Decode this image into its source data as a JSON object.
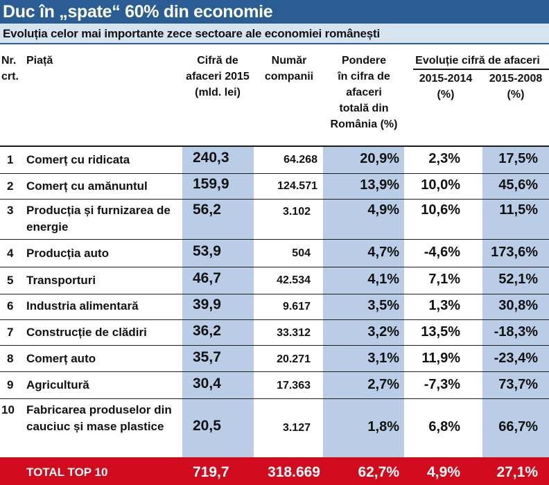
{
  "title": "Duc în „spate“ 60% din economie",
  "subtitle": "Evoluția celor mai importante zece sectoare ale economiei românești",
  "headers": {
    "nr": [
      "Nr.",
      "crt."
    ],
    "piata": "Piață",
    "cifra": [
      "Cifră de",
      "afaceri 2015",
      "(mld. lei)"
    ],
    "numar": [
      "Număr",
      "companii"
    ],
    "pondere": [
      "Pondere",
      "în cifra de",
      "afaceri",
      "totală din",
      "România (%)"
    ],
    "evolutie": "Evoluție cifră de afaceri",
    "ev1": [
      "2015-2014",
      "(%)"
    ],
    "ev2": [
      "2015-2008",
      "(%)"
    ]
  },
  "rows": [
    {
      "nr": "1",
      "name": "Comerț cu ridicata",
      "cifra": "240,3",
      "numar": "64.268",
      "pondere": "20,9%",
      "ev1": "2,3%",
      "ev2": "17,5%"
    },
    {
      "nr": "2",
      "name": "Comerț cu amănuntul",
      "cifra": "159,9",
      "numar": "124.571",
      "pondere": "13,9%",
      "ev1": "10,0%",
      "ev2": "45,6%"
    },
    {
      "nr": "3",
      "name": "Producția și furnizarea de energie",
      "cifra": "56,2",
      "numar": "3.102",
      "pondere": "4,9%",
      "ev1": "10,6%",
      "ev2": "11,5%"
    },
    {
      "nr": "4",
      "name": "Producția auto",
      "cifra": "53,9",
      "numar": "504",
      "pondere": "4,7%",
      "ev1": "-4,6%",
      "ev2": "173,6%"
    },
    {
      "nr": "5",
      "name": "Transporturi",
      "cifra": "46,7",
      "numar": "42.534",
      "pondere": "4,1%",
      "ev1": "7,1%",
      "ev2": "52,1%"
    },
    {
      "nr": "6",
      "name": "Industria alimentară",
      "cifra": "39,9",
      "numar": "9.617",
      "pondere": "3,5%",
      "ev1": "1,3%",
      "ev2": "30,8%"
    },
    {
      "nr": "7",
      "name": "Construcție de clădiri",
      "cifra": "36,2",
      "numar": "33.312",
      "pondere": "3,2%",
      "ev1": "13,5%",
      "ev2": "-18,3%"
    },
    {
      "nr": "8",
      "name": "Comerț auto",
      "cifra": "35,7",
      "numar": "20.271",
      "pondere": "3,1%",
      "ev1": "11,9%",
      "ev2": "-23,4%"
    },
    {
      "nr": "9",
      "name": "Agricultură",
      "cifra": "30,4",
      "numar": "17.363",
      "pondere": "2,7%",
      "ev1": "-7,3%",
      "ev2": "73,7%"
    },
    {
      "nr": "10",
      "name": "Fabricarea produselor din cauciuc și mase plastice",
      "cifra": "20,5",
      "numar": "3.127",
      "pondere": "1,8%",
      "ev1": "6,8%",
      "ev2": "66,7%"
    }
  ],
  "total": {
    "label": "TOTAL TOP 10",
    "cifra": "719,7",
    "numar": "318.669",
    "pondere": "62,7%",
    "ev1": "4,9%",
    "ev2": "27,1%"
  },
  "colors": {
    "title_bg": "#2a5d94",
    "subtitle_bg": "#d6e3f1",
    "shade": "#b9cde6",
    "total_bg": "#d20a1e"
  }
}
